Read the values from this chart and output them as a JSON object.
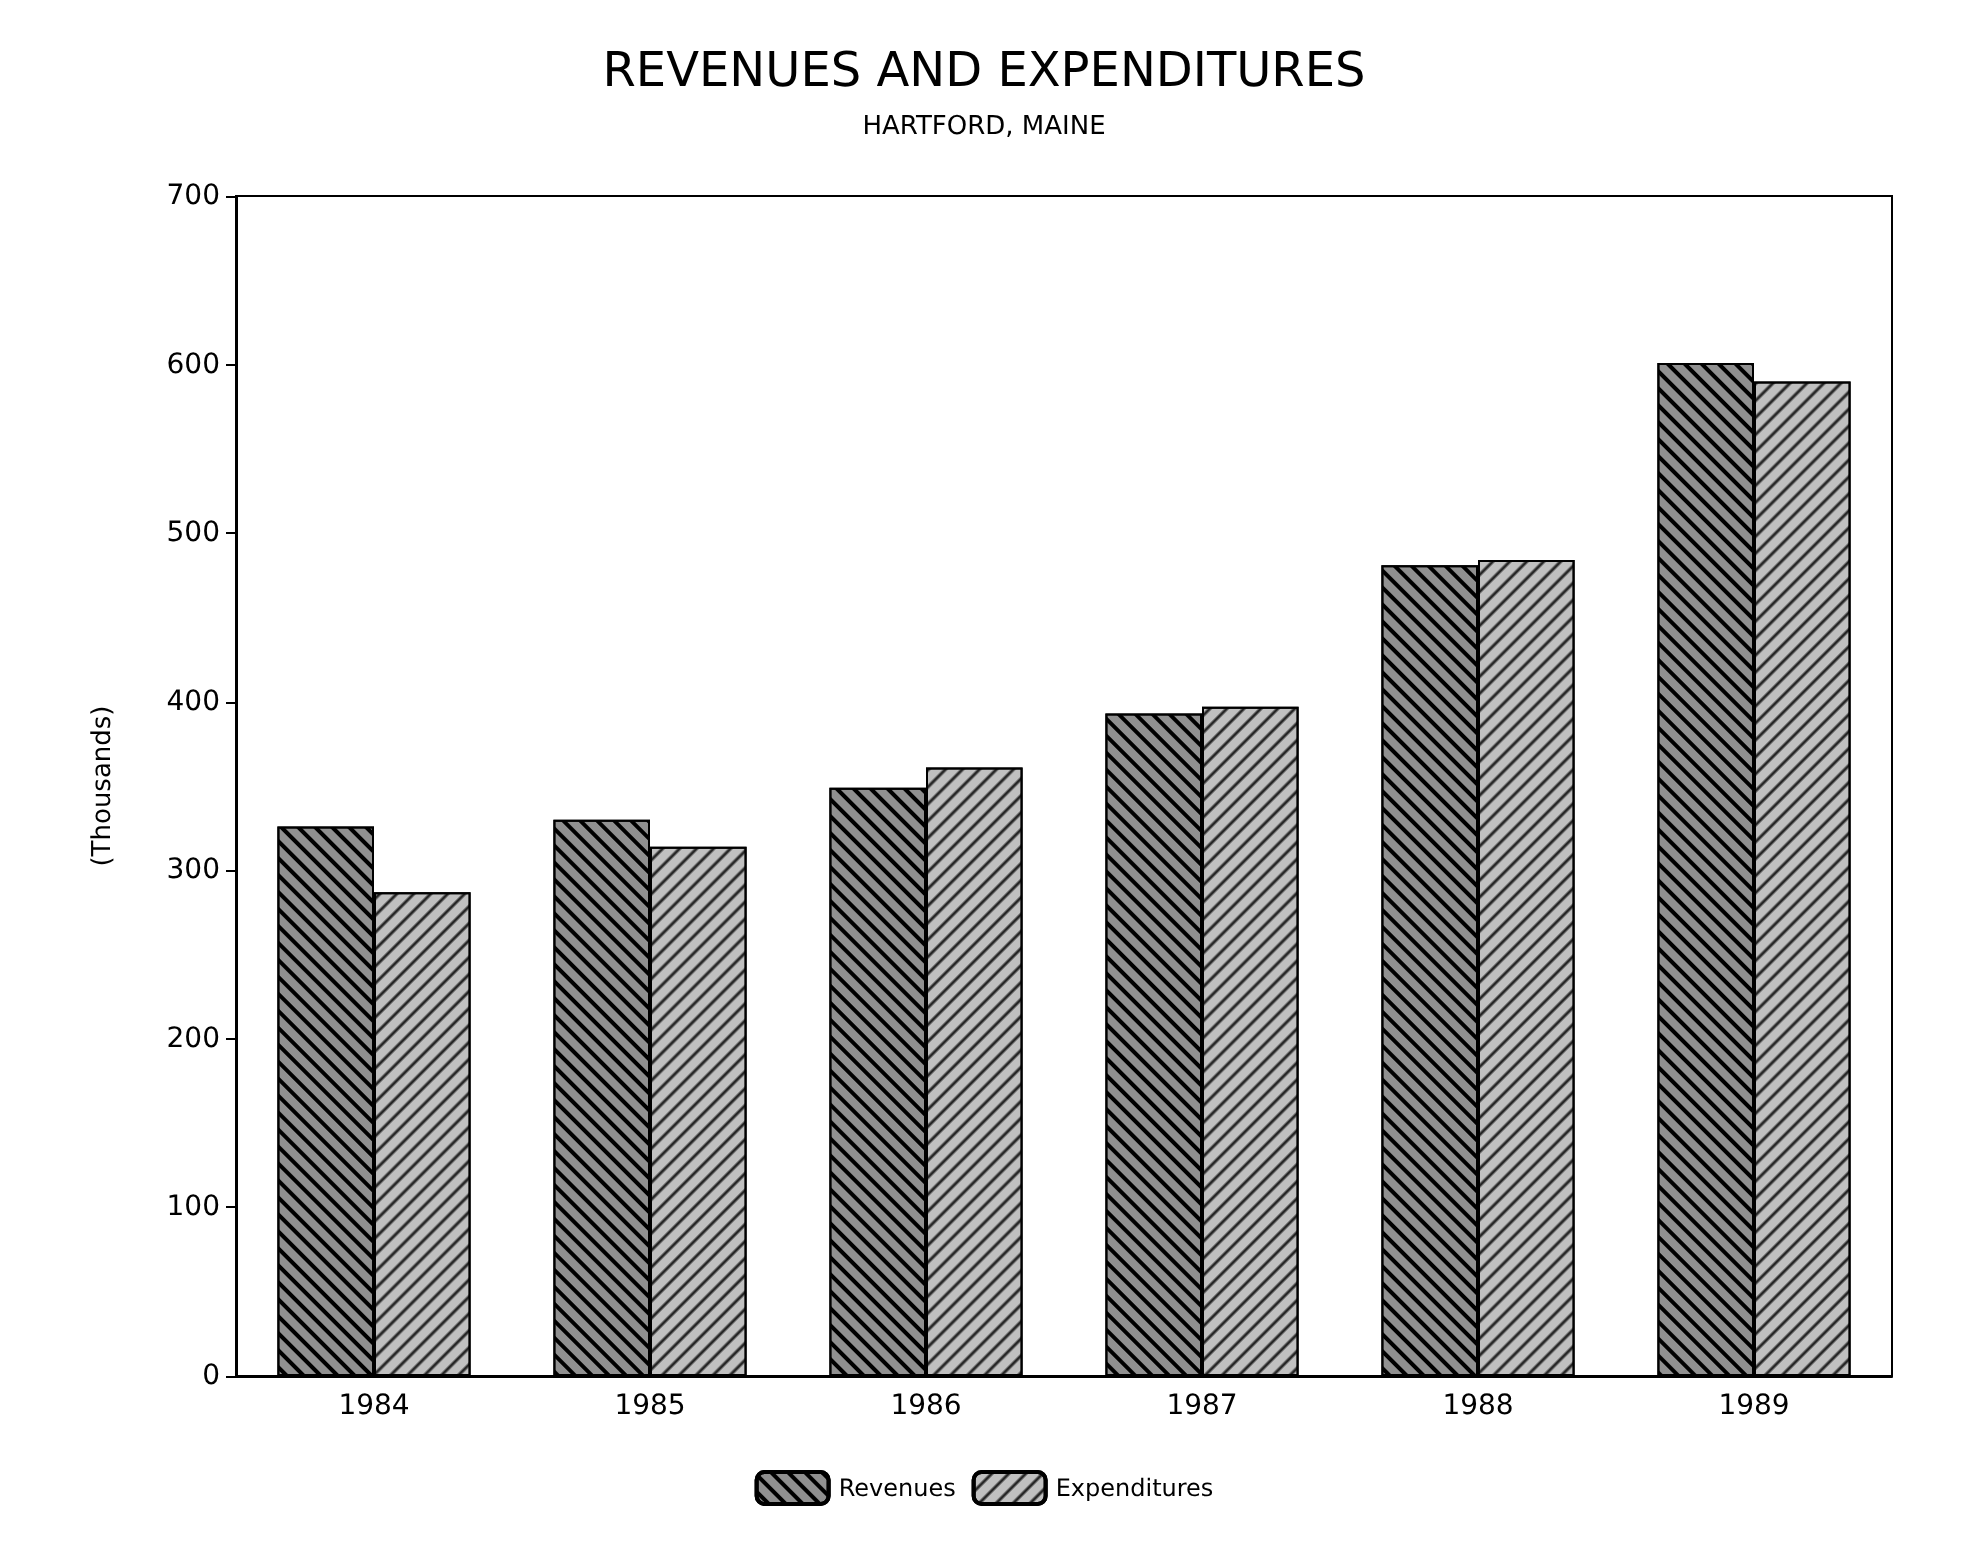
{
  "chart_data": {
    "type": "bar",
    "title": "REVENUES AND EXPENDITURES",
    "subtitle": "HARTFORD, MAINE",
    "ylabel": "(Thousands)",
    "categories": [
      "1984",
      "1985",
      "1986",
      "1987",
      "1988",
      "1989"
    ],
    "series": [
      {
        "name": "Revenues",
        "color": "#909090",
        "values": [
          326,
          330,
          349,
          393,
          481,
          601
        ]
      },
      {
        "name": "Expenditures",
        "color": "#c0c0c0",
        "values": [
          287,
          314,
          361,
          397,
          484,
          590
        ]
      }
    ],
    "ylim": [
      0,
      700
    ],
    "yticks": [
      0,
      100,
      200,
      300,
      400,
      500,
      600,
      700
    ],
    "grid": false,
    "legend": "bottom"
  }
}
